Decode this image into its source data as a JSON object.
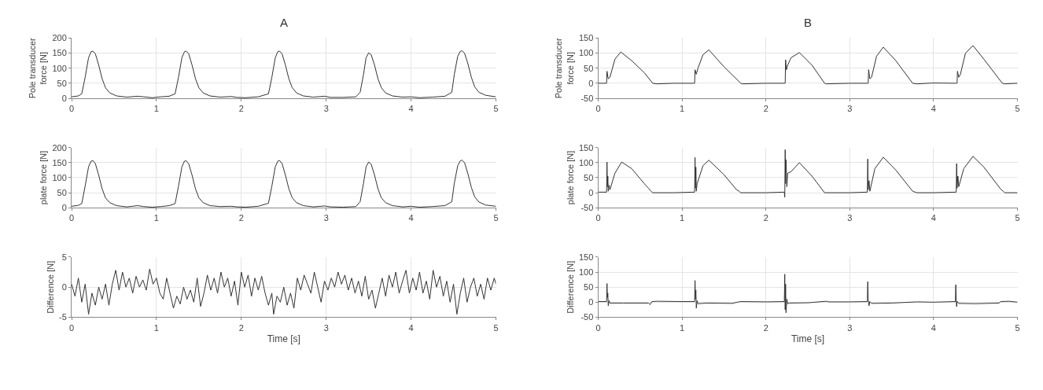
{
  "chart_data": [
    {
      "type": "line",
      "title": "A",
      "ylabel": "Pole transducer force [N]",
      "xlim": [
        0,
        5
      ],
      "xticks": [
        0,
        1,
        2,
        3,
        4,
        5
      ],
      "ylim": [
        0,
        200
      ],
      "yticks": [
        0,
        50,
        100,
        150,
        200
      ],
      "grid": true,
      "x": [
        0,
        0.08,
        0.12,
        0.16,
        0.2,
        0.23,
        0.25,
        0.28,
        0.32,
        0.36,
        0.4,
        0.45,
        0.53,
        0.65,
        0.78,
        0.85,
        0.95,
        1.05,
        1.15,
        1.22,
        1.26,
        1.3,
        1.33,
        1.35,
        1.38,
        1.42,
        1.46,
        1.5,
        1.55,
        1.63,
        1.75,
        1.88,
        1.95,
        2.05,
        2.2,
        2.32,
        2.36,
        2.4,
        2.43,
        2.45,
        2.48,
        2.52,
        2.56,
        2.6,
        2.65,
        2.73,
        2.85,
        2.98,
        3.05,
        3.2,
        3.35,
        3.4,
        3.44,
        3.47,
        3.5,
        3.53,
        3.57,
        3.61,
        3.65,
        3.7,
        3.78,
        3.9,
        4.0,
        4.1,
        4.25,
        4.4,
        4.48,
        4.51,
        4.55,
        4.58,
        4.6,
        4.63,
        4.67,
        4.71,
        4.75,
        4.8,
        4.88,
        5.0
      ],
      "series": [
        {
          "color": "#333333",
          "values": [
            5,
            8,
            15,
            70,
            135,
            155,
            157,
            148,
            110,
            65,
            35,
            18,
            8,
            4,
            7,
            5,
            2,
            5,
            7,
            15,
            70,
            135,
            155,
            157,
            148,
            110,
            65,
            35,
            18,
            8,
            4,
            6,
            3,
            2,
            5,
            15,
            70,
            135,
            155,
            157,
            148,
            110,
            65,
            35,
            18,
            8,
            4,
            7,
            3,
            3,
            5,
            20,
            80,
            135,
            151,
            145,
            110,
            65,
            35,
            18,
            8,
            4,
            5,
            2,
            4,
            7,
            20,
            80,
            140,
            156,
            158,
            150,
            115,
            70,
            38,
            20,
            10,
            5
          ]
        }
      ]
    },
    {
      "type": "line",
      "title": "B",
      "ylabel": "Pole transducer force [N]",
      "xlim": [
        0,
        5
      ],
      "xticks": [
        0,
        1,
        2,
        3,
        4,
        5
      ],
      "ylim": [
        -50,
        150
      ],
      "yticks": [
        -50,
        0,
        50,
        100,
        150
      ],
      "grid": true,
      "x": [
        0,
        0.1,
        0.105,
        0.12,
        0.14,
        0.2,
        0.27,
        0.4,
        0.55,
        0.65,
        0.7,
        0.9,
        1.14,
        1.15,
        1.155,
        1.17,
        1.19,
        1.25,
        1.32,
        1.5,
        1.7,
        1.72,
        2.0,
        2.22,
        2.23,
        2.235,
        2.245,
        2.26,
        2.3,
        2.4,
        2.55,
        2.7,
        2.72,
        3.0,
        3.21,
        3.22,
        3.225,
        3.24,
        3.26,
        3.32,
        3.4,
        3.55,
        3.75,
        3.8,
        4.0,
        4.27,
        4.28,
        4.285,
        4.3,
        4.32,
        4.38,
        4.47,
        4.6,
        4.82,
        4.85,
        5.0
      ],
      "series": [
        {
          "color": "#333333",
          "values": [
            0,
            0,
            40,
            15,
            20,
            80,
            104,
            75,
            35,
            0,
            -2,
            0,
            0,
            0,
            45,
            30,
            50,
            95,
            111,
            55,
            0,
            -2,
            0,
            0,
            0,
            78,
            45,
            60,
            85,
            102,
            60,
            0,
            -2,
            0,
            0,
            0,
            45,
            15,
            20,
            90,
            120,
            75,
            0,
            -2,
            1,
            0,
            0,
            40,
            20,
            30,
            100,
            125,
            80,
            0,
            -2,
            0
          ]
        }
      ]
    },
    {
      "type": "line",
      "ylabel": "plate force [N]",
      "xlim": [
        0,
        5
      ],
      "xticks": [
        0,
        1,
        2,
        3,
        4,
        5
      ],
      "ylim": [
        0,
        200
      ],
      "yticks": [
        0,
        50,
        100,
        150,
        200
      ],
      "grid": true,
      "x": [
        0,
        0.08,
        0.12,
        0.16,
        0.2,
        0.23,
        0.25,
        0.28,
        0.32,
        0.36,
        0.4,
        0.45,
        0.53,
        0.65,
        0.78,
        0.85,
        0.95,
        1.05,
        1.15,
        1.22,
        1.26,
        1.3,
        1.33,
        1.35,
        1.38,
        1.42,
        1.46,
        1.5,
        1.55,
        1.63,
        1.75,
        1.88,
        1.95,
        2.05,
        2.2,
        2.32,
        2.36,
        2.4,
        2.43,
        2.45,
        2.48,
        2.52,
        2.56,
        2.6,
        2.65,
        2.73,
        2.85,
        2.98,
        3.05,
        3.2,
        3.35,
        3.4,
        3.44,
        3.47,
        3.5,
        3.53,
        3.57,
        3.61,
        3.65,
        3.7,
        3.78,
        3.9,
        4.0,
        4.1,
        4.25,
        4.4,
        4.48,
        4.51,
        4.55,
        4.58,
        4.6,
        4.63,
        4.67,
        4.71,
        4.75,
        4.8,
        4.88,
        5.0
      ],
      "series": [
        {
          "color": "#333333",
          "values": [
            5,
            8,
            14,
            72,
            136,
            155,
            157,
            147,
            108,
            63,
            33,
            17,
            7,
            3,
            7,
            4,
            2,
            4,
            7,
            14,
            72,
            136,
            155,
            156,
            146,
            108,
            63,
            33,
            17,
            7,
            4,
            5,
            3,
            2,
            5,
            15,
            72,
            136,
            155,
            157,
            147,
            108,
            63,
            33,
            17,
            7,
            3,
            6,
            3,
            2,
            4,
            20,
            82,
            136,
            152,
            145,
            108,
            63,
            33,
            17,
            7,
            3,
            5,
            2,
            4,
            7,
            20,
            82,
            140,
            156,
            158,
            150,
            113,
            68,
            36,
            19,
            9,
            5
          ]
        }
      ]
    },
    {
      "type": "line",
      "ylabel": "plate force [N]",
      "xlim": [
        0,
        5
      ],
      "xticks": [
        0,
        1,
        2,
        3,
        4,
        5
      ],
      "ylim": [
        -50,
        150
      ],
      "yticks": [
        -50,
        0,
        50,
        100,
        150
      ],
      "grid": true,
      "x": [
        0,
        0.1,
        0.105,
        0.11,
        0.115,
        0.12,
        0.13,
        0.14,
        0.2,
        0.28,
        0.4,
        0.55,
        0.6,
        0.62,
        0.65,
        0.9,
        1.15,
        1.155,
        1.16,
        1.165,
        1.17,
        1.18,
        1.25,
        1.32,
        1.5,
        1.65,
        1.68,
        1.7,
        2.0,
        2.22,
        2.225,
        2.23,
        2.235,
        2.24,
        2.25,
        2.26,
        2.3,
        2.4,
        2.55,
        2.7,
        3.0,
        3.21,
        3.215,
        3.22,
        3.23,
        3.24,
        3.3,
        3.4,
        3.55,
        3.75,
        3.8,
        4.0,
        4.27,
        4.275,
        4.28,
        4.29,
        4.3,
        4.36,
        4.47,
        4.6,
        4.8,
        4.83,
        4.85,
        5.0
      ],
      "series": [
        {
          "color": "#333333",
          "values": [
            2,
            2,
            102,
            20,
            55,
            5,
            25,
            10,
            65,
            102,
            80,
            30,
            15,
            8,
            0,
            0,
            2,
            117,
            15,
            85,
            5,
            30,
            90,
            108,
            60,
            10,
            5,
            0,
            0,
            2,
            -15,
            143,
            30,
            110,
            20,
            65,
            70,
            100,
            55,
            0,
            0,
            2,
            112,
            10,
            40,
            5,
            80,
            118,
            75,
            5,
            0,
            0,
            2,
            97,
            15,
            55,
            20,
            80,
            121,
            85,
            12,
            5,
            0,
            0
          ]
        }
      ]
    },
    {
      "type": "line",
      "xlabel": "Time [s]",
      "ylabel": "Difference [N]",
      "xlim": [
        0,
        5
      ],
      "xticks": [
        0,
        1,
        2,
        3,
        4,
        5
      ],
      "ylim": [
        -5,
        5
      ],
      "yticks": [
        -5,
        0,
        5
      ],
      "grid": true,
      "x": [
        0,
        0.04,
        0.08,
        0.12,
        0.16,
        0.2,
        0.24,
        0.28,
        0.32,
        0.36,
        0.4,
        0.44,
        0.48,
        0.52,
        0.56,
        0.6,
        0.64,
        0.68,
        0.72,
        0.76,
        0.8,
        0.84,
        0.88,
        0.92,
        0.96,
        1.0,
        1.04,
        1.08,
        1.12,
        1.16,
        1.2,
        1.24,
        1.28,
        1.32,
        1.36,
        1.4,
        1.44,
        1.48,
        1.52,
        1.56,
        1.6,
        1.64,
        1.68,
        1.72,
        1.76,
        1.8,
        1.84,
        1.88,
        1.92,
        1.96,
        2.0,
        2.04,
        2.08,
        2.12,
        2.16,
        2.2,
        2.24,
        2.28,
        2.32,
        2.36,
        2.38,
        2.42,
        2.46,
        2.5,
        2.54,
        2.58,
        2.62,
        2.66,
        2.7,
        2.74,
        2.78,
        2.82,
        2.86,
        2.9,
        2.94,
        2.98,
        3.02,
        3.06,
        3.1,
        3.14,
        3.18,
        3.22,
        3.26,
        3.3,
        3.34,
        3.38,
        3.42,
        3.46,
        3.5,
        3.54,
        3.58,
        3.62,
        3.66,
        3.7,
        3.74,
        3.78,
        3.82,
        3.86,
        3.9,
        3.94,
        3.98,
        4.02,
        4.06,
        4.1,
        4.14,
        4.18,
        4.22,
        4.26,
        4.3,
        4.34,
        4.38,
        4.42,
        4.46,
        4.5,
        4.54,
        4.58,
        4.62,
        4.66,
        4.7,
        4.74,
        4.78,
        4.82,
        4.86,
        4.9,
        4.94,
        4.98,
        5.0
      ],
      "series": [
        {
          "color": "#333333",
          "values": [
            0.5,
            -1.5,
            1.5,
            -2.5,
            0.5,
            -4.5,
            -1,
            -3,
            0,
            -2,
            0.5,
            -3,
            0.5,
            2.8,
            -0.5,
            2.5,
            0,
            1.5,
            -1,
            1.8,
            0,
            1.2,
            -0.5,
            3,
            0.5,
            1.5,
            -1,
            -2,
            1.5,
            -1,
            -3.5,
            -1.5,
            -2.8,
            0,
            -2,
            -0.5,
            -2.5,
            1.5,
            -3.2,
            -1,
            2,
            -0.5,
            1.5,
            -1,
            2.5,
            0,
            1.5,
            -1.5,
            1,
            -3,
            2.5,
            0,
            2,
            -1.5,
            1.5,
            -0.5,
            1.8,
            -1,
            -3,
            -1,
            -4.5,
            -1.5,
            -2.5,
            0,
            -3,
            -1,
            -3.5,
            1.5,
            -0.5,
            2,
            0.5,
            -1,
            2.5,
            0,
            -2.5,
            1,
            -0.5,
            1.5,
            0,
            2.5,
            0.5,
            2,
            -0.5,
            1.5,
            -1,
            1,
            -1.5,
            1.8,
            -2,
            -0.5,
            -3.5,
            -1,
            1.5,
            -1.5,
            2,
            0,
            2.5,
            -1,
            1,
            2.8,
            -1,
            1.5,
            -0.5,
            2.5,
            -1,
            1,
            -2,
            2.8,
            0,
            1.8,
            -1.5,
            1,
            -2.5,
            0.5,
            -4.5,
            -1,
            1.5,
            -2.5,
            0,
            1.5,
            -1.5,
            0.5,
            -2,
            1.5,
            -0.5,
            1.5,
            0.5
          ]
        }
      ]
    },
    {
      "type": "line",
      "xlabel": "Time [s]",
      "ylabel": "Difference [N]",
      "xlim": [
        0,
        5
      ],
      "xticks": [
        0,
        1,
        2,
        3,
        4,
        5
      ],
      "ylim": [
        -50,
        150
      ],
      "yticks": [
        -50,
        0,
        50,
        100,
        150
      ],
      "grid": true,
      "x": [
        0,
        0.1,
        0.105,
        0.11,
        0.115,
        0.12,
        0.13,
        0.14,
        0.3,
        0.6,
        0.62,
        0.64,
        0.7,
        1.0,
        1.15,
        1.155,
        1.16,
        1.165,
        1.17,
        1.18,
        1.19,
        1.3,
        1.6,
        1.66,
        1.7,
        2.0,
        2.22,
        2.225,
        2.23,
        2.235,
        2.24,
        2.25,
        2.26,
        2.28,
        2.5,
        2.72,
        2.75,
        3.0,
        3.21,
        3.215,
        3.22,
        3.23,
        3.24,
        3.26,
        3.5,
        3.8,
        4.0,
        4.26,
        4.265,
        4.27,
        4.275,
        4.28,
        4.3,
        4.5,
        4.78,
        4.8,
        4.9,
        5.0
      ],
      "series": [
        {
          "color": "#333333",
          "values": [
            2,
            2,
            62,
            15,
            30,
            -12,
            5,
            -3,
            -3,
            -3,
            -8,
            2,
            3,
            2,
            2,
            72,
            10,
            40,
            -20,
            5,
            -5,
            -3,
            -4,
            0,
            2,
            1,
            2,
            93,
            -25,
            60,
            -35,
            10,
            -5,
            -3,
            -2,
            3,
            1,
            1,
            2,
            68,
            10,
            -12,
            2,
            -4,
            -3,
            1,
            0,
            2,
            58,
            5,
            -15,
            3,
            -4,
            -5,
            -3,
            2,
            3,
            0
          ]
        }
      ]
    }
  ]
}
